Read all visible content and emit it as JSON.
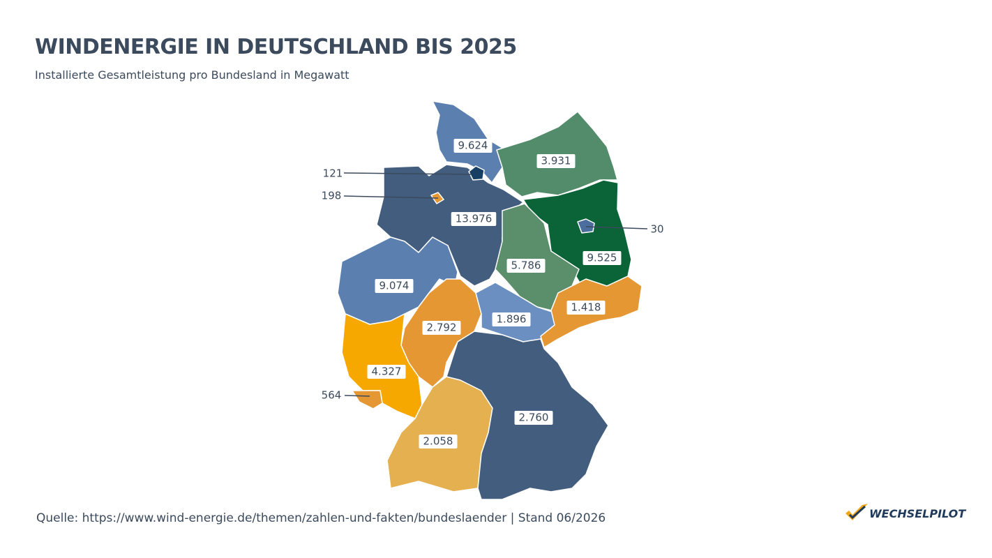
{
  "title": "WINDENERGIE IN DEUTSCHLAND BIS 2025",
  "subtitle": "Installierte Gesamtleistung pro Bundesland in Megawatt",
  "regions": [
    {
      "value_label": "9.624",
      "color": "#5b80b0"
    },
    {
      "value_label": "3.931",
      "color": "#528c6a"
    },
    {
      "value_label": "9.525",
      "color": "#0a6438"
    },
    {
      "value_label": "13.976",
      "color": "#435d7e"
    },
    {
      "value_label": "5.786",
      "color": "#5b8e6a"
    },
    {
      "value_label": "9.074",
      "color": "#5b80b0"
    },
    {
      "value_label": "2.792",
      "color": "#e59733"
    },
    {
      "value_label": "1.896",
      "color": "#6a8fc0"
    },
    {
      "value_label": "1.418",
      "color": "#e59733"
    },
    {
      "value_label": "4.327",
      "color": "#f6a800"
    },
    {
      "value_label": "564",
      "color": "#e59733"
    },
    {
      "value_label": "2.058",
      "color": "#e5b050"
    },
    {
      "value_label": "2.760",
      "color": "#435d7e"
    },
    {
      "value_label": "121",
      "color": "#173f64"
    },
    {
      "value_label": "198",
      "color": "#e59733"
    },
    {
      "value_label": "30",
      "color": "#4b6e9e"
    }
  ],
  "source": "Quelle: https://www.wind-energie.de/themen/zahlen-und-fakten/bundeslaender | Stand 06/2026",
  "logo": "WECHSELPILOT"
}
